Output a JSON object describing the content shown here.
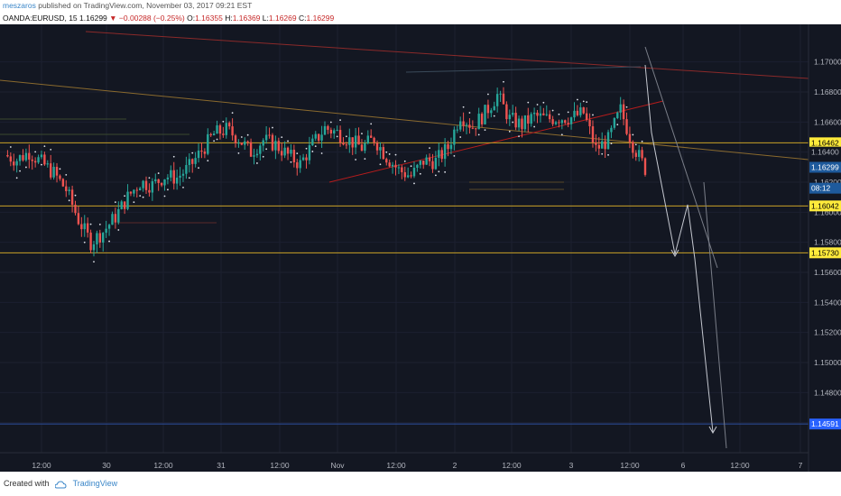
{
  "header": {
    "author": "meszaros",
    "published_text": "published on TradingView.com, November 03, 2017 09:21 EST"
  },
  "symbol_info": {
    "symbol": "OANDA:EURUSD, 15",
    "last": "1.16299",
    "change": "▼ −0.00288 (−0.25%)",
    "open_label": "O:",
    "open": "1.16355",
    "high_label": "H:",
    "high": "1.16369",
    "low_label": "L:",
    "low": "1.16269",
    "close_label": "C:",
    "close": "1.16299"
  },
  "footer": {
    "created_with": "Created with",
    "brand": "TradingView"
  },
  "chart_data": {
    "type": "candlestick",
    "instrument": "EURUSD",
    "timeframe": "15",
    "ylim": [
      1.144,
      1.1725
    ],
    "y_ticks": [
      "1.17000",
      "1.16800",
      "1.16600",
      "1.16400",
      "1.16200",
      "1.16000",
      "1.15800",
      "1.15600",
      "1.15400",
      "1.15200",
      "1.15000",
      "1.14800",
      "1.14600"
    ],
    "x_ticks": [
      "12:00",
      "30",
      "12:00",
      "31",
      "12:00",
      "Nov",
      "12:00",
      "2",
      "12:00",
      "3",
      "12:00",
      "6",
      "12:00",
      "7"
    ],
    "price_tags": [
      {
        "label": "1.16462",
        "value": 1.16462,
        "color": "#ffeb3b",
        "text_color": "#000000"
      },
      {
        "label": "1.16400",
        "value": 1.164,
        "color": "#131722",
        "text_color": "#b2b5be"
      },
      {
        "label": "1.16299",
        "value": 1.16299,
        "color": "#1e5a9c",
        "text_color": "#ffffff"
      },
      {
        "label": "08:12",
        "value": 1.1616,
        "color": "#1e5a9c",
        "text_color": "#ffffff"
      },
      {
        "label": "1.16042",
        "value": 1.16042,
        "color": "#ffeb3b",
        "text_color": "#000000"
      },
      {
        "label": "1.15730",
        "value": 1.1573,
        "color": "#ffeb3b",
        "text_color": "#000000"
      },
      {
        "label": "1.14591",
        "value": 1.14591,
        "color": "#2962ff",
        "text_color": "#ffffff"
      }
    ],
    "horizontal_levels": [
      {
        "value": 1.16462,
        "color": "#c9a227"
      },
      {
        "value": 1.16042,
        "color": "#c9a227"
      },
      {
        "value": 1.1573,
        "color": "#c9a227"
      },
      {
        "value": 1.14591,
        "color": "#2d4f9e"
      }
    ],
    "series": [
      {
        "name": "price",
        "values": [
          1.1638,
          1.1635,
          1.164,
          1.1633,
          1.1626,
          1.1615,
          1.1595,
          1.158,
          1.1587,
          1.1597,
          1.161,
          1.162,
          1.1618,
          1.1624,
          1.1623,
          1.163,
          1.1641,
          1.1652,
          1.1655,
          1.1649,
          1.164,
          1.1648,
          1.1645,
          1.1638,
          1.1632,
          1.1645,
          1.1656,
          1.1653,
          1.1648,
          1.1643,
          1.1649,
          1.1637,
          1.1628,
          1.1624,
          1.1634,
          1.1634,
          1.1643,
          1.1665,
          1.1657,
          1.1666,
          1.1678,
          1.1662,
          1.1658,
          1.1664,
          1.1662,
          1.1663,
          1.1663,
          1.1666,
          1.1642,
          1.1648,
          1.1668,
          1.1645,
          1.1629
        ]
      }
    ]
  }
}
